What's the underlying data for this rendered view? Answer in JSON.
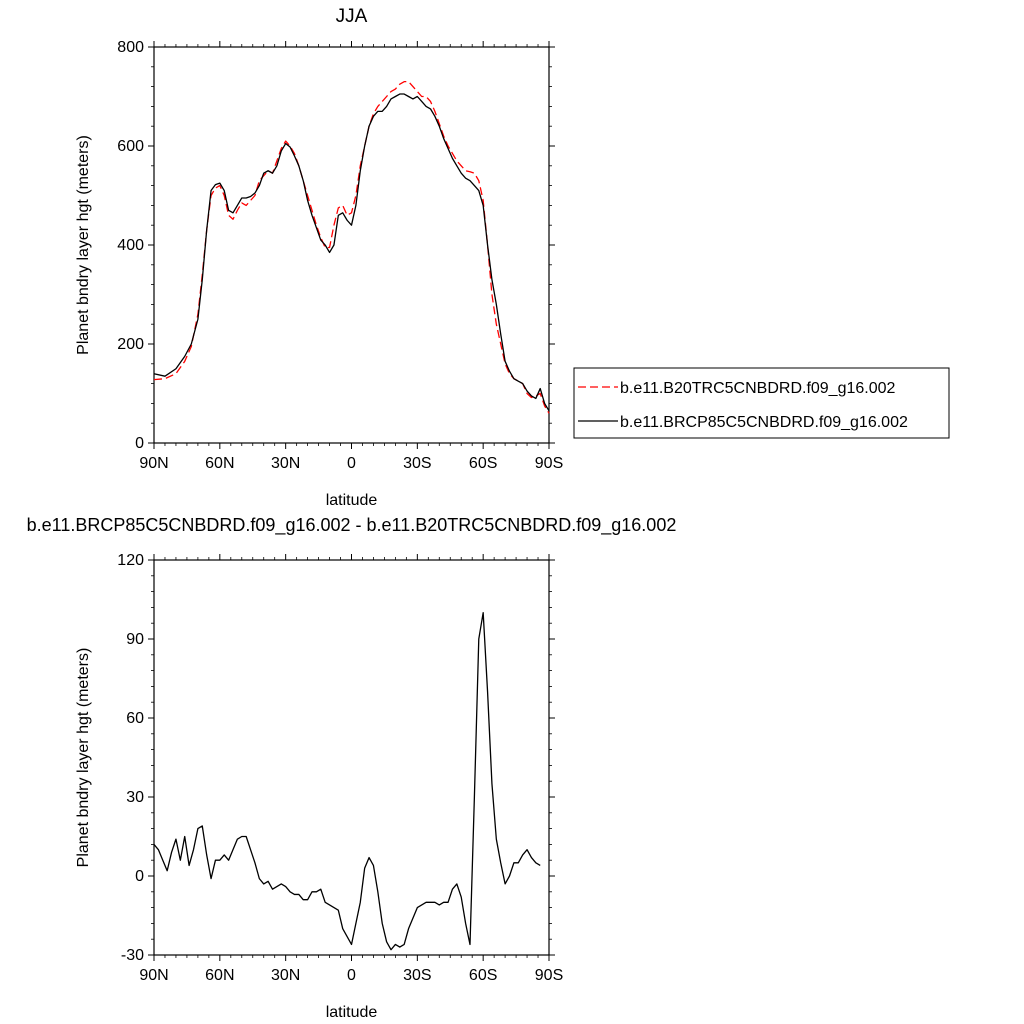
{
  "colors": {
    "series_a": "#ff0000",
    "series_b": "#000000",
    "axis": "#000000",
    "background": "#ffffff"
  },
  "chart_data": [
    {
      "type": "line",
      "title": "JJA",
      "xlabel": "latitude",
      "ylabel": "Planet bndry layer hgt (meters)",
      "xlim": [
        90,
        -90
      ],
      "ylim": [
        0,
        800
      ],
      "x_ticks": [
        90,
        60,
        30,
        0,
        -30,
        -60,
        -90
      ],
      "x_tick_labels": [
        "90N",
        "60N",
        "30N",
        "0",
        "30S",
        "60S",
        "90S"
      ],
      "y_ticks": [
        0,
        200,
        400,
        600,
        800
      ],
      "y_tick_labels": [
        "0",
        "200",
        "400",
        "600",
        "800"
      ],
      "grid": false,
      "legend": "right",
      "series": [
        {
          "name": "b.e11.B20TRC5CNBDRD.f09_g16.002",
          "style": "dashed",
          "color": "#ff0000",
          "points": [
            [
              90,
              128
            ],
            [
              85,
              130
            ],
            [
              80,
              140
            ],
            [
              76,
              165
            ],
            [
              73,
              195
            ],
            [
              70,
              260
            ],
            [
              68,
              340
            ],
            [
              66,
              430
            ],
            [
              64,
              500
            ],
            [
              62,
              515
            ],
            [
              60,
              520
            ],
            [
              58,
              500
            ],
            [
              56,
              460
            ],
            [
              54,
              452
            ],
            [
              52,
              470
            ],
            [
              50,
              485
            ],
            [
              48,
              480
            ],
            [
              46,
              490
            ],
            [
              44,
              500
            ],
            [
              42,
              530
            ],
            [
              40,
              540
            ],
            [
              38,
              550
            ],
            [
              36,
              545
            ],
            [
              34,
              570
            ],
            [
              32,
              595
            ],
            [
              30,
              610
            ],
            [
              28,
              600
            ],
            [
              26,
              585
            ],
            [
              24,
              560
            ],
            [
              22,
              530
            ],
            [
              20,
              500
            ],
            [
              18,
              470
            ],
            [
              16,
              440
            ],
            [
              14,
              415
            ],
            [
              12,
              395
            ],
            [
              10,
              395
            ],
            [
              8,
              440
            ],
            [
              6,
              475
            ],
            [
              4,
              480
            ],
            [
              2,
              460
            ],
            [
              0,
              465
            ],
            [
              -2,
              500
            ],
            [
              -4,
              560
            ],
            [
              -6,
              600
            ],
            [
              -8,
              640
            ],
            [
              -10,
              665
            ],
            [
              -12,
              680
            ],
            [
              -14,
              690
            ],
            [
              -16,
              700
            ],
            [
              -18,
              710
            ],
            [
              -20,
              715
            ],
            [
              -22,
              725
            ],
            [
              -24,
              730
            ],
            [
              -26,
              730
            ],
            [
              -28,
              720
            ],
            [
              -30,
              710
            ],
            [
              -32,
              700
            ],
            [
              -34,
              700
            ],
            [
              -36,
              690
            ],
            [
              -38,
              670
            ],
            [
              -40,
              645
            ],
            [
              -42,
              620
            ],
            [
              -44,
              600
            ],
            [
              -46,
              585
            ],
            [
              -48,
              570
            ],
            [
              -50,
              560
            ],
            [
              -52,
              550
            ],
            [
              -54,
              548
            ],
            [
              -56,
              545
            ],
            [
              -58,
              530
            ],
            [
              -60,
              490
            ],
            [
              -62,
              400
            ],
            [
              -64,
              300
            ],
            [
              -66,
              240
            ],
            [
              -68,
              200
            ],
            [
              -70,
              160
            ],
            [
              -72,
              140
            ],
            [
              -74,
              130
            ],
            [
              -76,
              125
            ],
            [
              -78,
              120
            ],
            [
              -80,
              100
            ],
            [
              -82,
              92
            ],
            [
              -84,
              95
            ],
            [
              -86,
              100
            ],
            [
              -88,
              75
            ],
            [
              -90,
              60
            ]
          ]
        },
        {
          "name": "b.e11.BRCP85C5CNBDRD.f09_g16.002",
          "style": "solid",
          "color": "#000000",
          "points": [
            [
              90,
              140
            ],
            [
              85,
              135
            ],
            [
              80,
              150
            ],
            [
              76,
              175
            ],
            [
              73,
              200
            ],
            [
              70,
              250
            ],
            [
              68,
              330
            ],
            [
              66,
              430
            ],
            [
              64,
              510
            ],
            [
              62,
              522
            ],
            [
              60,
              525
            ],
            [
              58,
              510
            ],
            [
              56,
              470
            ],
            [
              54,
              465
            ],
            [
              52,
              480
            ],
            [
              50,
              495
            ],
            [
              48,
              495
            ],
            [
              46,
              498
            ],
            [
              44,
              505
            ],
            [
              42,
              520
            ],
            [
              40,
              545
            ],
            [
              38,
              550
            ],
            [
              36,
              545
            ],
            [
              34,
              560
            ],
            [
              32,
              590
            ],
            [
              30,
              605
            ],
            [
              28,
              598
            ],
            [
              26,
              580
            ],
            [
              24,
              560
            ],
            [
              22,
              530
            ],
            [
              20,
              490
            ],
            [
              18,
              460
            ],
            [
              16,
              435
            ],
            [
              14,
              410
            ],
            [
              12,
              400
            ],
            [
              10,
              385
            ],
            [
              8,
              400
            ],
            [
              6,
              460
            ],
            [
              4,
              465
            ],
            [
              2,
              450
            ],
            [
              0,
              440
            ],
            [
              -2,
              480
            ],
            [
              -4,
              550
            ],
            [
              -6,
              600
            ],
            [
              -8,
              640
            ],
            [
              -10,
              660
            ],
            [
              -12,
              670
            ],
            [
              -14,
              670
            ],
            [
              -16,
              680
            ],
            [
              -18,
              695
            ],
            [
              -20,
              700
            ],
            [
              -22,
              705
            ],
            [
              -24,
              705
            ],
            [
              -26,
              700
            ],
            [
              -28,
              695
            ],
            [
              -30,
              700
            ],
            [
              -32,
              690
            ],
            [
              -34,
              680
            ],
            [
              -36,
              675
            ],
            [
              -38,
              660
            ],
            [
              -40,
              640
            ],
            [
              -42,
              615
            ],
            [
              -44,
              595
            ],
            [
              -46,
              575
            ],
            [
              -48,
              560
            ],
            [
              -50,
              545
            ],
            [
              -52,
              535
            ],
            [
              -54,
              530
            ],
            [
              -56,
              520
            ],
            [
              -58,
              510
            ],
            [
              -60,
              480
            ],
            [
              -62,
              400
            ],
            [
              -64,
              330
            ],
            [
              -66,
              280
            ],
            [
              -68,
              220
            ],
            [
              -70,
              165
            ],
            [
              -72,
              145
            ],
            [
              -74,
              130
            ],
            [
              -76,
              125
            ],
            [
              -78,
              120
            ],
            [
              -80,
              105
            ],
            [
              -82,
              95
            ],
            [
              -84,
              90
            ],
            [
              -86,
              110
            ],
            [
              -88,
              80
            ],
            [
              -90,
              65
            ]
          ]
        }
      ]
    },
    {
      "type": "line",
      "title": "b.e11.BRCP85C5CNBDRD.f09_g16.002 - b.e11.B20TRC5CNBDRD.f09_g16.002",
      "xlabel": "latitude",
      "ylabel": "Planet bndry layer hgt (meters)",
      "xlim": [
        90,
        -90
      ],
      "ylim": [
        -30,
        120
      ],
      "x_ticks": [
        90,
        60,
        30,
        0,
        -30,
        -60,
        -90
      ],
      "x_tick_labels": [
        "90N",
        "60N",
        "30N",
        "0",
        "30S",
        "60S",
        "90S"
      ],
      "y_ticks": [
        -30,
        0,
        30,
        60,
        90,
        120
      ],
      "y_tick_labels": [
        "-30",
        "0",
        "30",
        "60",
        "90",
        "120"
      ],
      "grid": false,
      "series": [
        {
          "name": "",
          "style": "solid",
          "color": "#000000",
          "points": [
            [
              90,
              12
            ],
            [
              88,
              10
            ],
            [
              86,
              6
            ],
            [
              84,
              2
            ],
            [
              82,
              9
            ],
            [
              80,
              14
            ],
            [
              78,
              6
            ],
            [
              76,
              15
            ],
            [
              74,
              4
            ],
            [
              72,
              10
            ],
            [
              70,
              18
            ],
            [
              68,
              19
            ],
            [
              66,
              8
            ],
            [
              64,
              -1
            ],
            [
              62,
              6
            ],
            [
              60,
              6
            ],
            [
              58,
              8
            ],
            [
              56,
              6
            ],
            [
              54,
              10
            ],
            [
              52,
              14
            ],
            [
              50,
              15
            ],
            [
              48,
              15
            ],
            [
              46,
              10
            ],
            [
              44,
              5
            ],
            [
              42,
              -1
            ],
            [
              40,
              -3
            ],
            [
              38,
              -2
            ],
            [
              36,
              -5
            ],
            [
              34,
              -4
            ],
            [
              32,
              -3
            ],
            [
              30,
              -4
            ],
            [
              28,
              -6
            ],
            [
              26,
              -7
            ],
            [
              24,
              -7
            ],
            [
              22,
              -9
            ],
            [
              20,
              -9
            ],
            [
              18,
              -6
            ],
            [
              16,
              -6
            ],
            [
              14,
              -5
            ],
            [
              12,
              -10
            ],
            [
              10,
              -11
            ],
            [
              8,
              -12
            ],
            [
              6,
              -13
            ],
            [
              4,
              -20
            ],
            [
              2,
              -23
            ],
            [
              0,
              -26
            ],
            [
              -2,
              -18
            ],
            [
              -4,
              -10
            ],
            [
              -6,
              3
            ],
            [
              -8,
              7
            ],
            [
              -10,
              4
            ],
            [
              -12,
              -6
            ],
            [
              -14,
              -18
            ],
            [
              -16,
              -25
            ],
            [
              -18,
              -28
            ],
            [
              -20,
              -26
            ],
            [
              -22,
              -27
            ],
            [
              -24,
              -26
            ],
            [
              -26,
              -20
            ],
            [
              -28,
              -16
            ],
            [
              -30,
              -12
            ],
            [
              -32,
              -11
            ],
            [
              -34,
              -10
            ],
            [
              -36,
              -10
            ],
            [
              -38,
              -10
            ],
            [
              -40,
              -11
            ],
            [
              -42,
              -10
            ],
            [
              -44,
              -10
            ],
            [
              -46,
              -5
            ],
            [
              -48,
              -3
            ],
            [
              -50,
              -8
            ],
            [
              -52,
              -18
            ],
            [
              -54,
              -26
            ],
            [
              -56,
              30
            ],
            [
              -58,
              90
            ],
            [
              -60,
              100
            ],
            [
              -62,
              70
            ],
            [
              -64,
              35
            ],
            [
              -66,
              14
            ],
            [
              -68,
              5
            ],
            [
              -70,
              -3
            ],
            [
              -72,
              0
            ],
            [
              -74,
              5
            ],
            [
              -76,
              5
            ],
            [
              -78,
              8
            ],
            [
              -80,
              10
            ],
            [
              -82,
              7
            ],
            [
              -84,
              5
            ],
            [
              -86,
              4
            ]
          ]
        }
      ]
    }
  ]
}
